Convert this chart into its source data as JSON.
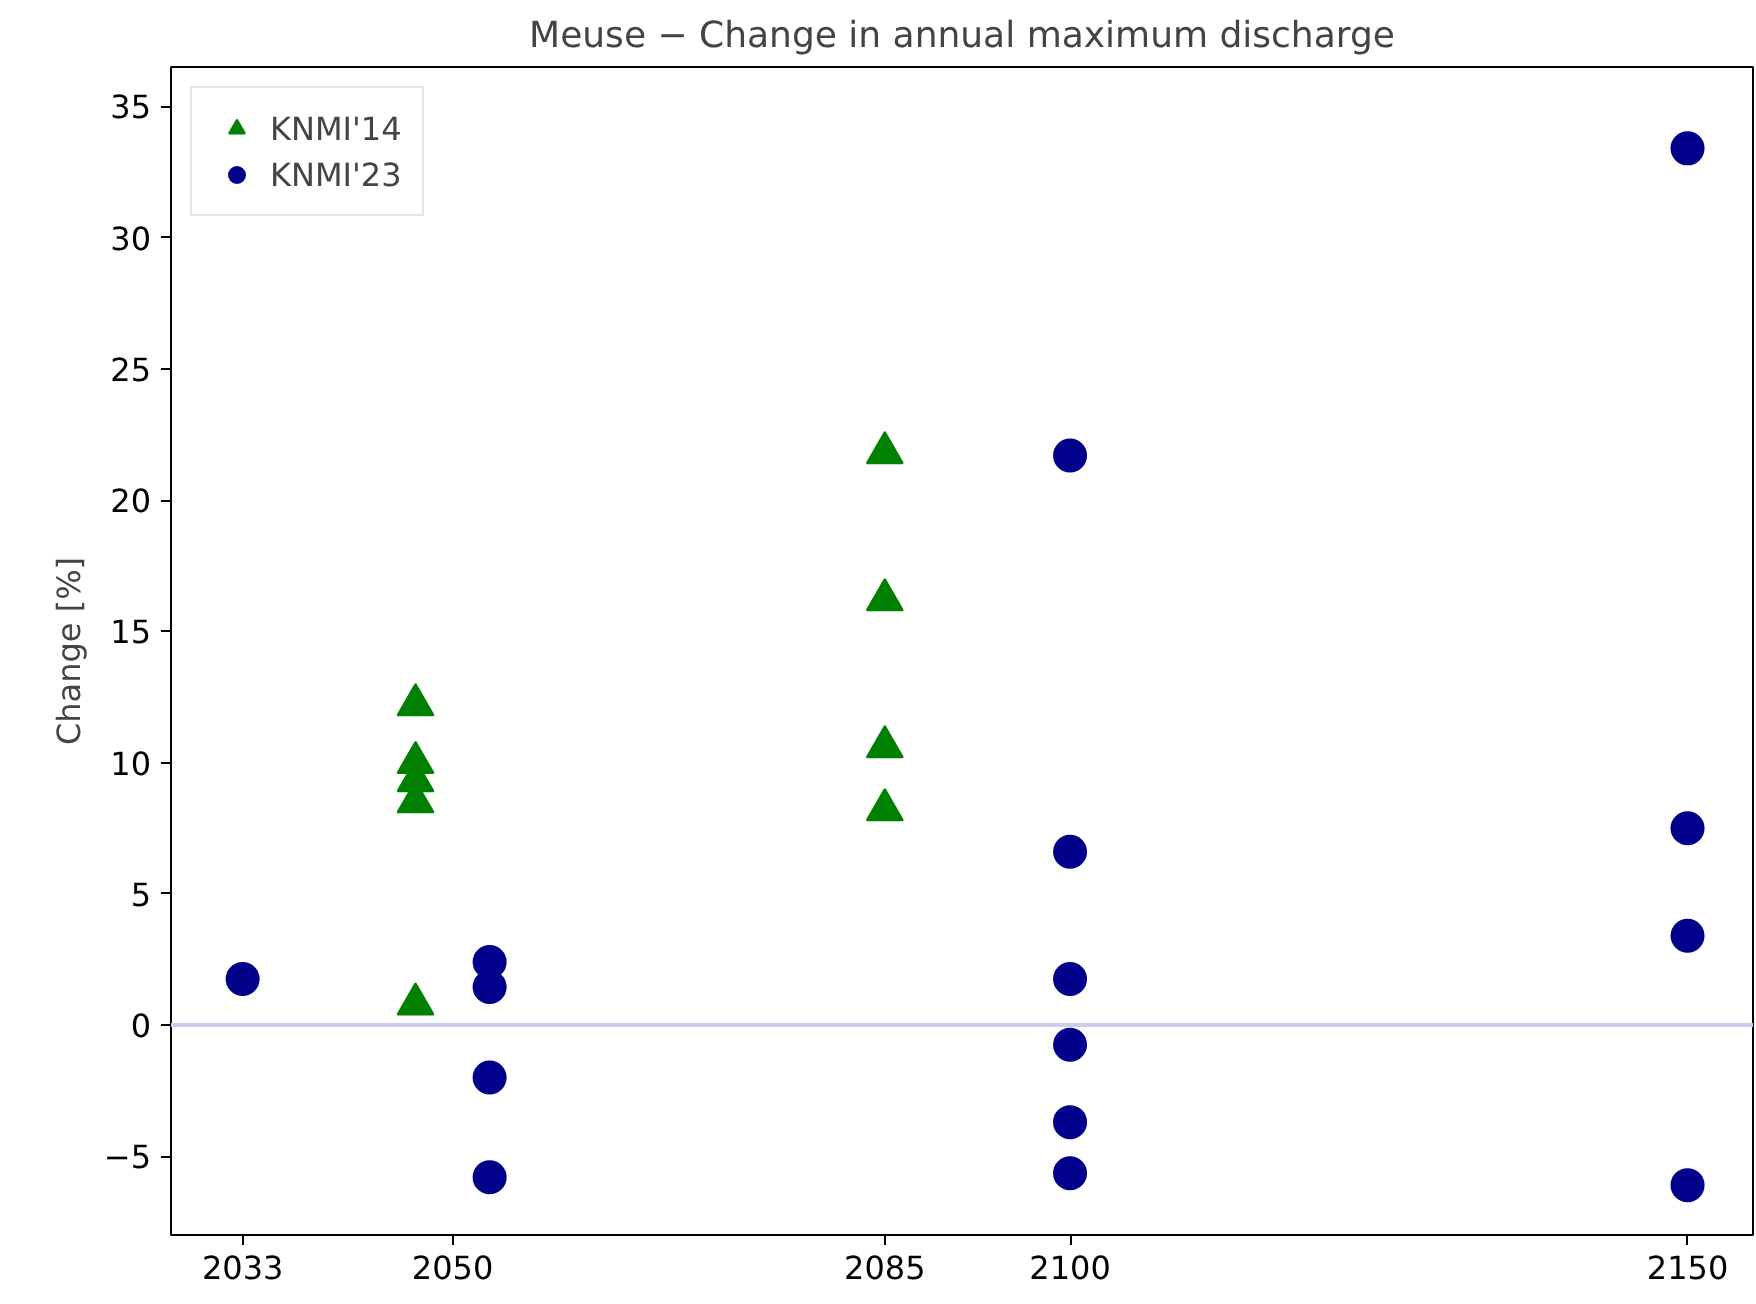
{
  "chart_data": {
    "type": "scatter",
    "title": "Meuse − Change in annual maximum discharge",
    "ylabel": "Change [%]",
    "series": [
      {
        "name": "KNMI'14",
        "color": "#008000",
        "marker": "triangle",
        "x": [
          2047,
          2047,
          2047,
          2047,
          2047,
          2085,
          2085,
          2085,
          2085
        ],
        "values": [
          12.2,
          10.0,
          9.3,
          8.5,
          0.8,
          21.8,
          16.2,
          10.6,
          8.2
        ]
      },
      {
        "name": "KNMI'23",
        "color": "#00008b",
        "marker": "circle",
        "x": [
          2033,
          2053,
          2053,
          2053,
          2053,
          2100,
          2100,
          2100,
          2100,
          2100,
          2100,
          2150,
          2150,
          2150,
          2150
        ],
        "values": [
          1.75,
          2.4,
          1.45,
          -2.0,
          -5.8,
          21.7,
          6.6,
          1.75,
          -0.75,
          -3.7,
          -5.65,
          33.4,
          7.5,
          3.4,
          -6.1
        ]
      }
    ],
    "xlim": [
      2027.2,
      2155.3
    ],
    "xticks": [
      2033,
      2050,
      2085,
      2100,
      2150
    ],
    "ylim": [
      -8.0,
      36.5
    ],
    "yticks": [
      {
        "value": -5,
        "label": "−5"
      },
      0,
      5,
      10,
      15,
      20,
      25,
      30,
      35
    ],
    "ref_lines": [
      {
        "axis": "y",
        "value": 0,
        "color": "#ccccee"
      }
    ],
    "grid": false,
    "legend": "top left"
  }
}
